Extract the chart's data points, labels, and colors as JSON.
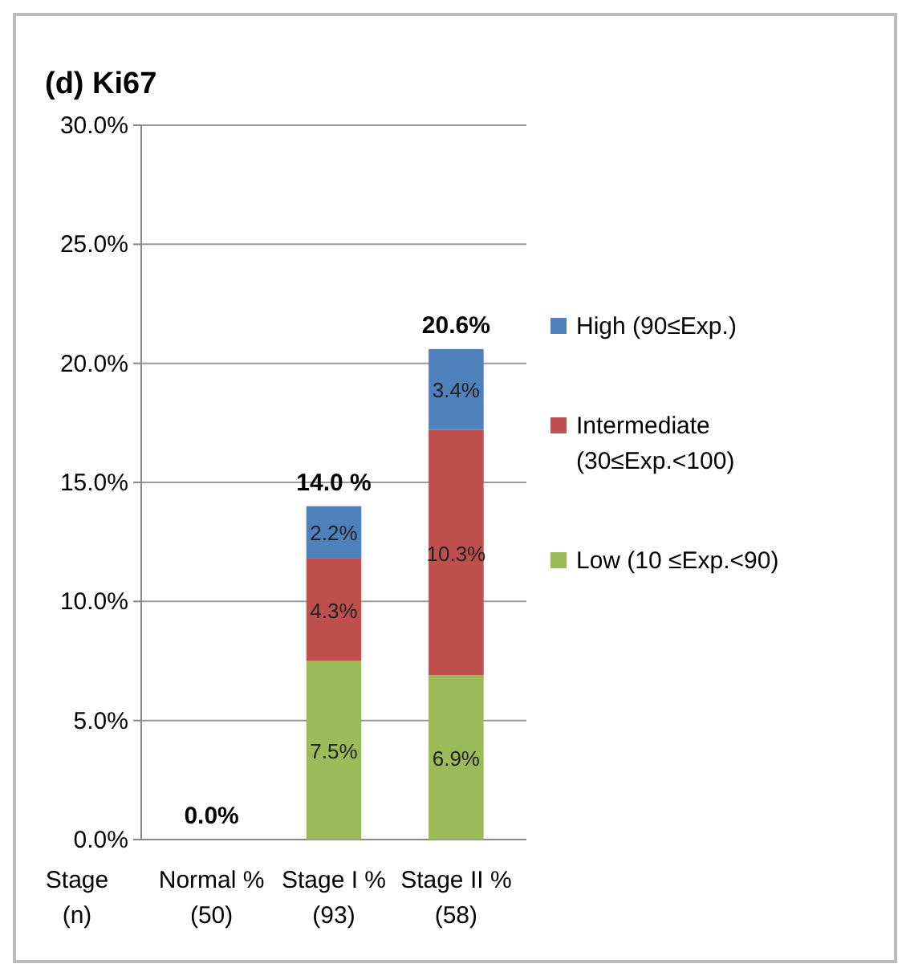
{
  "chart_data": {
    "type": "bar",
    "title": "(d) Ki67",
    "categories": [
      "Normal %\n(50)",
      "Stage I %\n(93)",
      "Stage II %\n(58)"
    ],
    "stacked": true,
    "series": [
      {
        "name": "Low (10 ≤Exp.<90)",
        "color": "#9bbb59",
        "values": [
          0,
          7.5,
          6.9
        ],
        "value_labels": [
          null,
          "7.5%",
          "6.9%"
        ]
      },
      {
        "name": "Intermediate\n(30≤Exp.<100)",
        "color": "#c0504d",
        "values": [
          0,
          4.3,
          10.3
        ],
        "value_labels": [
          null,
          "4.3%",
          "10.3%"
        ]
      },
      {
        "name": "High (90≤Exp.)",
        "color": "#4f81bd",
        "values": [
          0,
          2.2,
          3.4
        ],
        "value_labels": [
          null,
          "2.2%",
          "3.4%"
        ]
      }
    ],
    "totals": [
      "0.0%",
      "14.0 %",
      "20.6%"
    ],
    "ylim": [
      0,
      30
    ],
    "yticks": [
      {
        "value": 0,
        "label": "0.0%"
      },
      {
        "value": 5,
        "label": "5.0%"
      },
      {
        "value": 10,
        "label": "10.0%"
      },
      {
        "value": 15,
        "label": "15.0%"
      },
      {
        "value": 20,
        "label": "20.0%"
      },
      {
        "value": 25,
        "label": "25.0%"
      },
      {
        "value": 30,
        "label": "30.0%"
      }
    ],
    "grid": "y",
    "legend": "right",
    "annotations": [
      "Stage\n(n)"
    ]
  }
}
